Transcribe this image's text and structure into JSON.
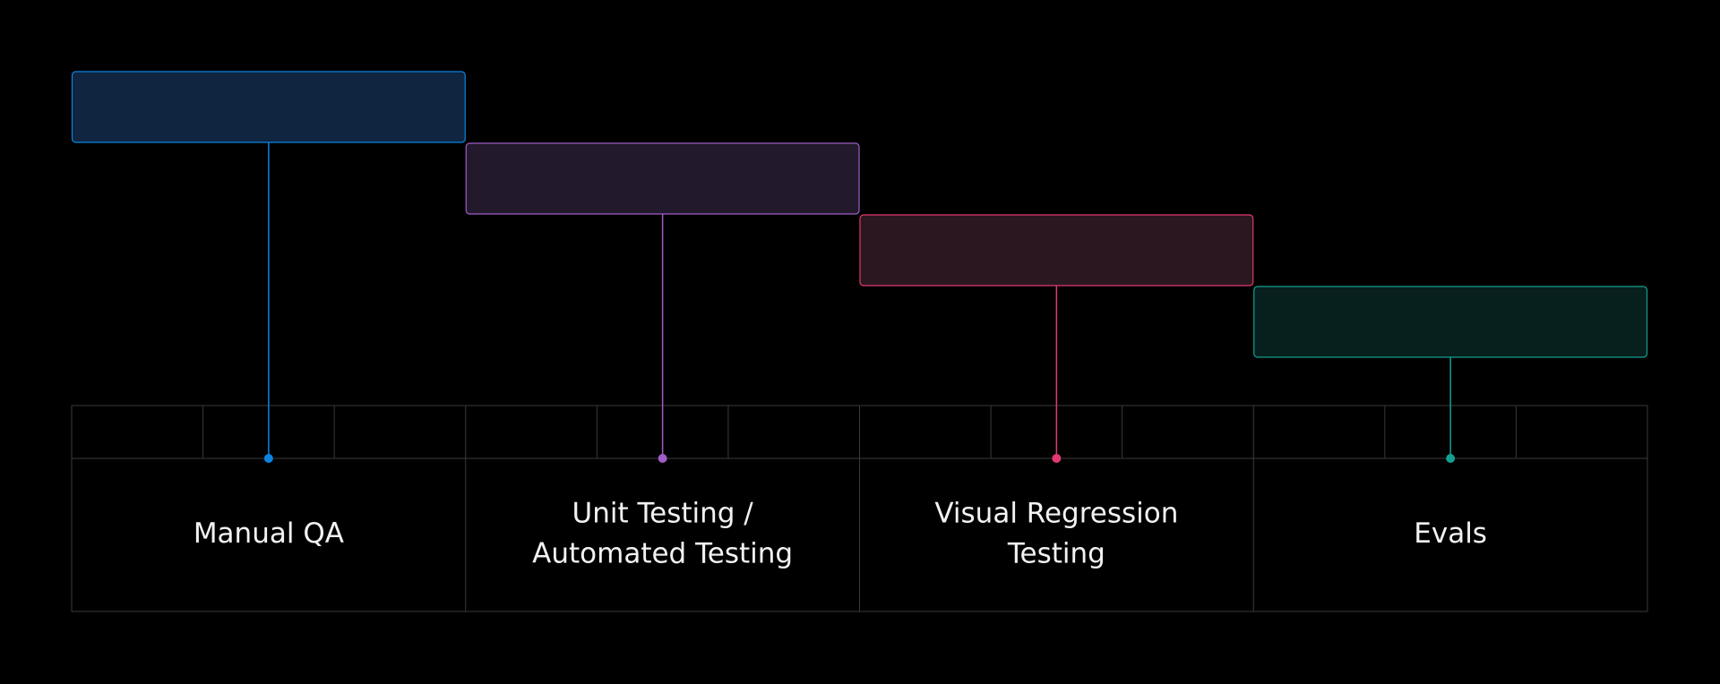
{
  "stages": [
    {
      "label": [
        "Manual QA"
      ]
    },
    {
      "label": [
        "Unit Testing /",
        "Automated Testing"
      ]
    },
    {
      "label": [
        "Visual Regression",
        "Testing"
      ]
    },
    {
      "label": [
        "Evals"
      ]
    }
  ]
}
